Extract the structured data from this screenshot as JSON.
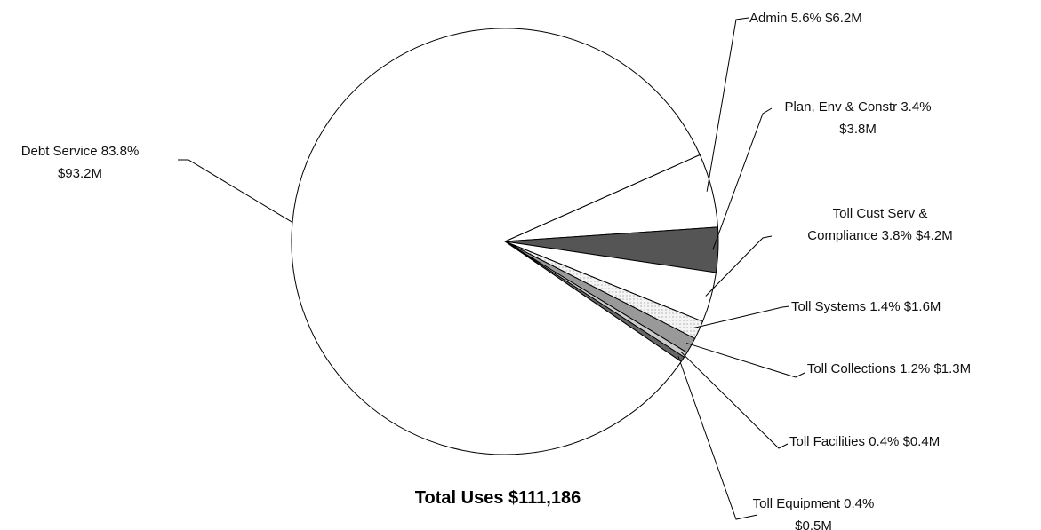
{
  "chart_data": {
    "type": "pie",
    "title": "Total Uses $111,186",
    "categories": [
      "Admin",
      "Plan, Env & Constr",
      "Toll Cust Serv & Compliance",
      "Toll Systems",
      "Toll Collections",
      "Toll Facilities",
      "Toll Equipment",
      "Debt Service"
    ],
    "values": [
      5.6,
      3.4,
      3.8,
      1.4,
      1.2,
      0.4,
      0.4,
      83.8
    ],
    "value_labels": [
      "5.6%",
      "3.4%",
      "3.8%",
      "1.4%",
      "1.2%",
      "0.4%",
      "0.4%",
      "83.8%"
    ],
    "amounts": [
      6200000,
      3800000,
      4200000,
      1600000,
      1300000,
      400000,
      500000,
      93200000
    ],
    "amount_labels": [
      "$6.2M",
      "$3.8M",
      "$4.2M",
      "$1.6M",
      "$1.3M",
      "$0.4M",
      "$0.5M",
      "$93.2M"
    ],
    "colors": [
      "#ffffff",
      "#555555",
      "#ffffff",
      "#eeeeee",
      "#999999",
      "#cccccc",
      "#666666",
      "#ffffff"
    ]
  }
}
